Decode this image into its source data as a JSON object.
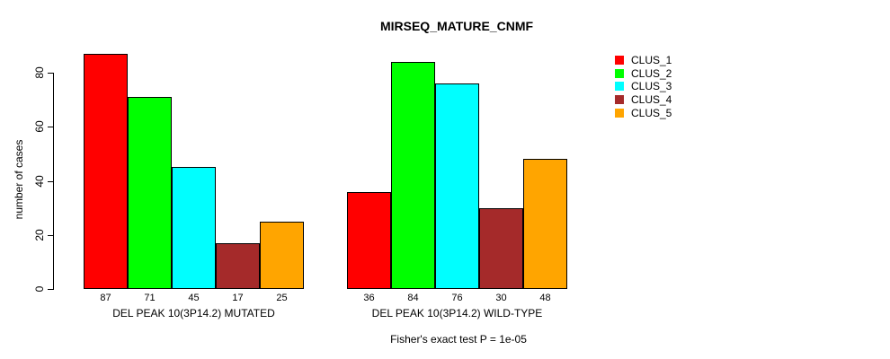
{
  "title": "MIRSEQ_MATURE_CNMF",
  "ylabel": "number of cases",
  "footer": "Fisher's exact test P = 1e-05",
  "chart_data": {
    "type": "bar",
    "title": "MIRSEQ_MATURE_CNMF",
    "xlabel": "",
    "ylabel": "number of cases",
    "annotation": "Fisher's exact test P = 1e-05",
    "groups": [
      "DEL PEAK 10(3P14.2) MUTATED",
      "DEL PEAK 10(3P14.2) WILD-TYPE"
    ],
    "series": [
      {
        "name": "CLUS_1",
        "color": "#ff0000",
        "values": [
          87,
          36
        ]
      },
      {
        "name": "CLUS_2",
        "color": "#00ff00",
        "values": [
          71,
          84
        ]
      },
      {
        "name": "CLUS_3",
        "color": "#00ffff",
        "values": [
          45,
          76
        ]
      },
      {
        "name": "CLUS_4",
        "color": "#a52a2a",
        "values": [
          17,
          30
        ]
      },
      {
        "name": "CLUS_5",
        "color": "#ffa500",
        "values": [
          25,
          48
        ]
      }
    ],
    "bar_value_labels": [
      [
        "87",
        "71",
        "45",
        "17",
        "25"
      ],
      [
        "36",
        "84",
        "76",
        "30",
        "48"
      ]
    ],
    "yticks": [
      "0",
      "20",
      "40",
      "60",
      "80"
    ],
    "ylim": [
      0,
      88
    ],
    "grid": false,
    "legend_position": "right",
    "bar_border_color": "#000000"
  }
}
